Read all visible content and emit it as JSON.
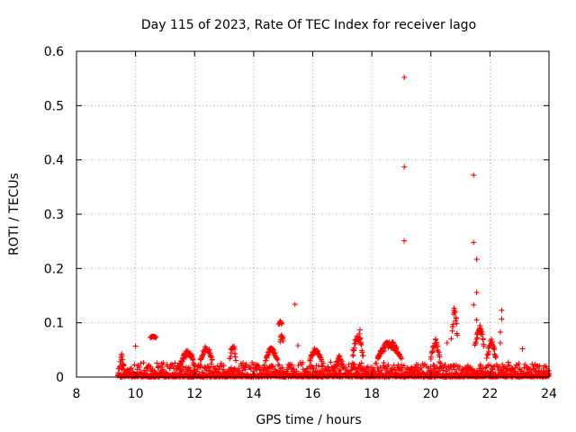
{
  "chart_data": {
    "type": "scatter",
    "title": "Day 115 of 2023, Rate Of TEC Index for receiver lago",
    "xlabel": "GPS time / hours",
    "ylabel": "ROTI / TECUs",
    "xlim": [
      8,
      24
    ],
    "ylim": [
      0,
      0.6
    ],
    "xticks": [
      "8",
      "10",
      "12",
      "14",
      "16",
      "18",
      "20",
      "22",
      "24"
    ],
    "yticks": [
      "0",
      "0.1",
      "0.2",
      "0.3",
      "0.4",
      "0.5",
      "0.6"
    ],
    "grid": true,
    "marker": "+",
    "color": "#ff0000",
    "baseline_band": {
      "x_range": [
        9.4,
        24.0
      ],
      "typical_max": 0.03,
      "note": "dense continuous cloud of points between 0 and ~0.03"
    },
    "structures": [
      {
        "x": [
          9.45,
          9.6
        ],
        "y": [
          0.0,
          0.045
        ]
      },
      {
        "x": [
          10.5,
          10.7
        ],
        "y": [
          0.072,
          0.075
        ]
      },
      {
        "x": [
          11.5,
          12.0
        ],
        "y": [
          0.01,
          0.05
        ]
      },
      {
        "x": [
          12.2,
          12.6
        ],
        "y": [
          0.02,
          0.058
        ]
      },
      {
        "x": [
          13.2,
          13.4
        ],
        "y": [
          0.02,
          0.062
        ]
      },
      {
        "x": [
          14.4,
          14.8
        ],
        "y": [
          0.02,
          0.055
        ]
      },
      {
        "x": [
          14.85,
          14.95
        ],
        "y": [
          0.095,
          0.103
        ]
      },
      {
        "x": [
          14.9,
          15.0
        ],
        "y": [
          0.06,
          0.08
        ]
      },
      {
        "x": [
          15.9,
          16.3
        ],
        "y": [
          0.02,
          0.055
        ]
      },
      {
        "x": [
          16.8,
          17.0
        ],
        "y": [
          0.015,
          0.04
        ]
      },
      {
        "x": [
          17.35,
          17.7
        ],
        "y": [
          0.02,
          0.085
        ]
      },
      {
        "x": [
          18.2,
          19.0
        ],
        "y": [
          0.02,
          0.068
        ]
      },
      {
        "x": [
          20.0,
          20.3
        ],
        "y": [
          0.02,
          0.07
        ]
      },
      {
        "x": [
          20.7,
          20.9
        ],
        "y": [
          0.05,
          0.13
        ]
      },
      {
        "x": [
          21.5,
          21.8
        ],
        "y": [
          0.04,
          0.1
        ]
      },
      {
        "x": [
          21.9,
          22.2
        ],
        "y": [
          0.02,
          0.07
        ]
      }
    ],
    "scattered_points": [
      {
        "x": 10.0,
        "y": 0.057
      },
      {
        "x": 15.4,
        "y": 0.134
      },
      {
        "x": 15.5,
        "y": 0.058
      },
      {
        "x": 17.6,
        "y": 0.087
      },
      {
        "x": 19.1,
        "y": 0.552
      },
      {
        "x": 19.1,
        "y": 0.387
      },
      {
        "x": 19.1,
        "y": 0.251
      },
      {
        "x": 21.45,
        "y": 0.372
      },
      {
        "x": 21.45,
        "y": 0.248
      },
      {
        "x": 21.55,
        "y": 0.217
      },
      {
        "x": 21.55,
        "y": 0.156
      },
      {
        "x": 21.45,
        "y": 0.133
      },
      {
        "x": 21.55,
        "y": 0.105
      },
      {
        "x": 22.4,
        "y": 0.123
      },
      {
        "x": 22.4,
        "y": 0.107
      },
      {
        "x": 22.35,
        "y": 0.083
      },
      {
        "x": 22.35,
        "y": 0.063
      },
      {
        "x": 20.55,
        "y": 0.063
      },
      {
        "x": 23.1,
        "y": 0.052
      }
    ]
  }
}
